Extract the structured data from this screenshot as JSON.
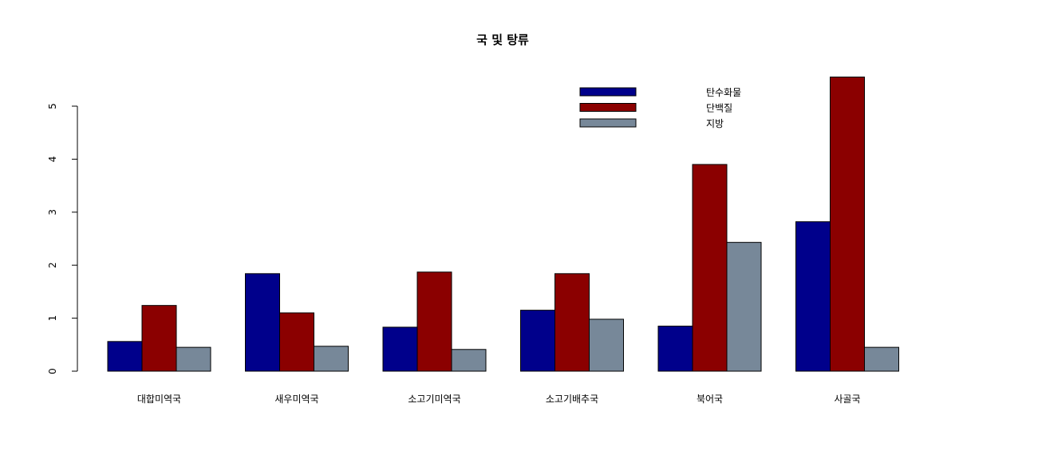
{
  "chart_data": {
    "type": "bar",
    "title": "국 및 탕류",
    "xlabel": "",
    "ylabel": "",
    "categories": [
      "대합미역국",
      "새우미역국",
      "소고기미역국",
      "소고기배추국",
      "북어국",
      "사골국"
    ],
    "series": [
      {
        "name": "탄수화물",
        "color": "#00008B",
        "values": [
          0.56,
          1.84,
          0.83,
          1.15,
          0.85,
          2.82
        ]
      },
      {
        "name": "단백질",
        "color": "#8B0000",
        "values": [
          1.24,
          1.1,
          1.87,
          1.84,
          3.9,
          5.55
        ]
      },
      {
        "name": "지방",
        "color": "#778899",
        "values": [
          0.45,
          0.47,
          0.41,
          0.98,
          2.43,
          0.45
        ]
      }
    ],
    "yticks": [
      0,
      1,
      2,
      3,
      4,
      5
    ],
    "ylim": [
      0,
      5.6
    ],
    "grid": false,
    "legend_position": "top-right"
  }
}
